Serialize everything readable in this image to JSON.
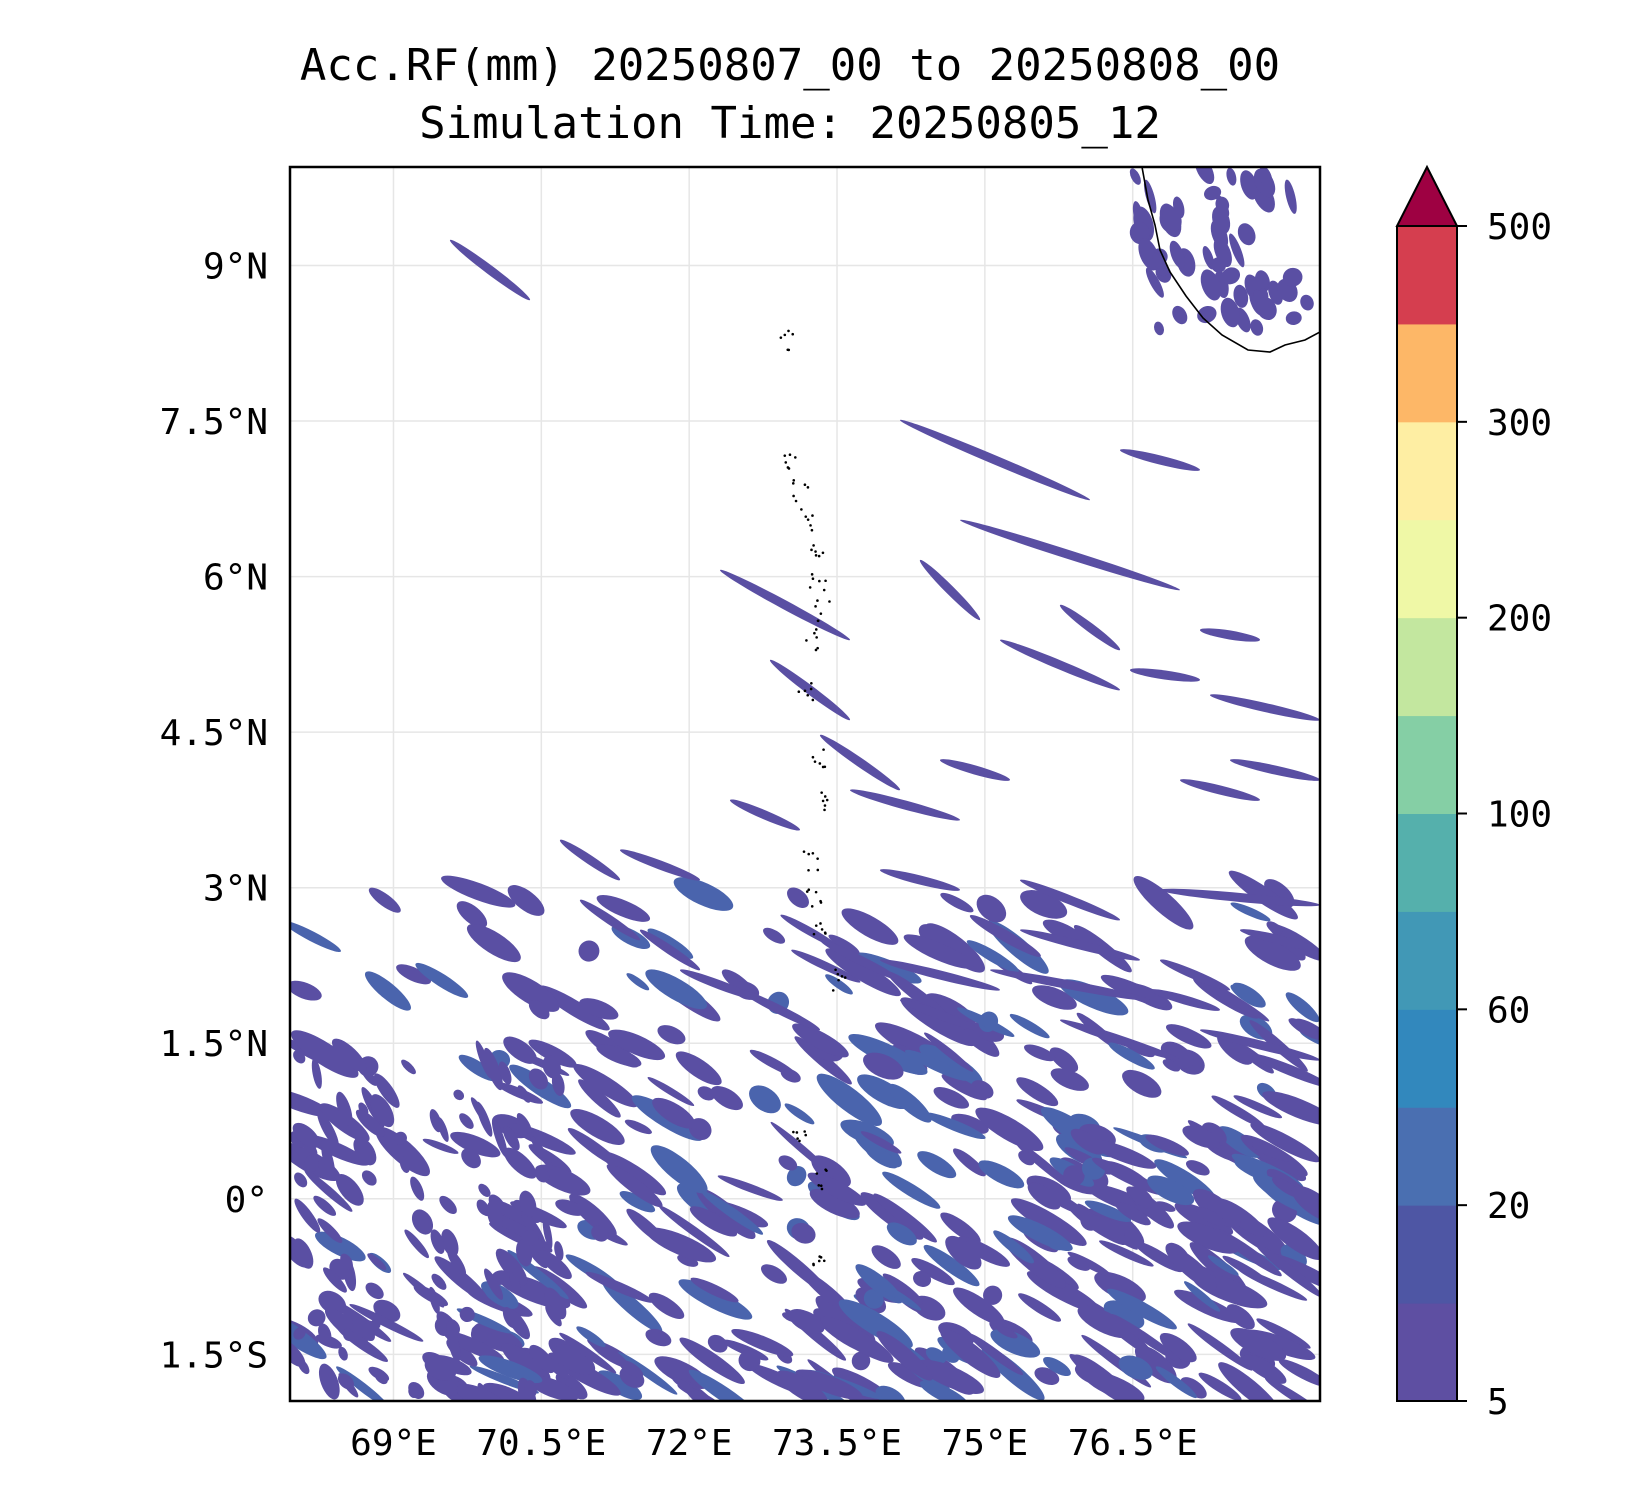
{
  "title": {
    "line1": "Acc.RF(mm) 20250807_00 to 20250808_00",
    "line2": "Simulation Time: 20250805_12"
  },
  "map": {
    "lon_range": [
      67.95,
      78.4
    ],
    "lat_range": [
      -1.95,
      9.95
    ],
    "x_ticks": [
      {
        "value": 69,
        "label": "69°E"
      },
      {
        "value": 70.5,
        "label": "70.5°E"
      },
      {
        "value": 72,
        "label": "72°E"
      },
      {
        "value": 73.5,
        "label": "73.5°E"
      },
      {
        "value": 75,
        "label": "75°E"
      },
      {
        "value": 76.5,
        "label": "76.5°E"
      }
    ],
    "y_ticks": [
      {
        "value": 9,
        "label": "9°N"
      },
      {
        "value": 7.5,
        "label": "7.5°N"
      },
      {
        "value": 6,
        "label": "6°N"
      },
      {
        "value": 4.5,
        "label": "4.5°N"
      },
      {
        "value": 3,
        "label": "3°N"
      },
      {
        "value": 1.5,
        "label": "1.5°N"
      },
      {
        "value": 0,
        "label": "0°"
      },
      {
        "value": -1.5,
        "label": "1.5°S"
      }
    ],
    "grid": true,
    "rain_color": "#5a4fa3",
    "rain_color_heavy": "#4a64ad"
  },
  "colorbar": {
    "extend": "max",
    "extend_color": "#9e0142",
    "ticks": [
      "5",
      "20",
      "60",
      "100",
      "200",
      "300",
      "500"
    ],
    "colors": [
      "#5e4fa2",
      "#4e56a4",
      "#4a6fb1",
      "#3288bd",
      "#4198b6",
      "#55b0ac",
      "#85cfa5",
      "#c3e79f",
      "#eff8a6",
      "#feeea3",
      "#fdb767",
      "#d53e4f"
    ]
  }
}
